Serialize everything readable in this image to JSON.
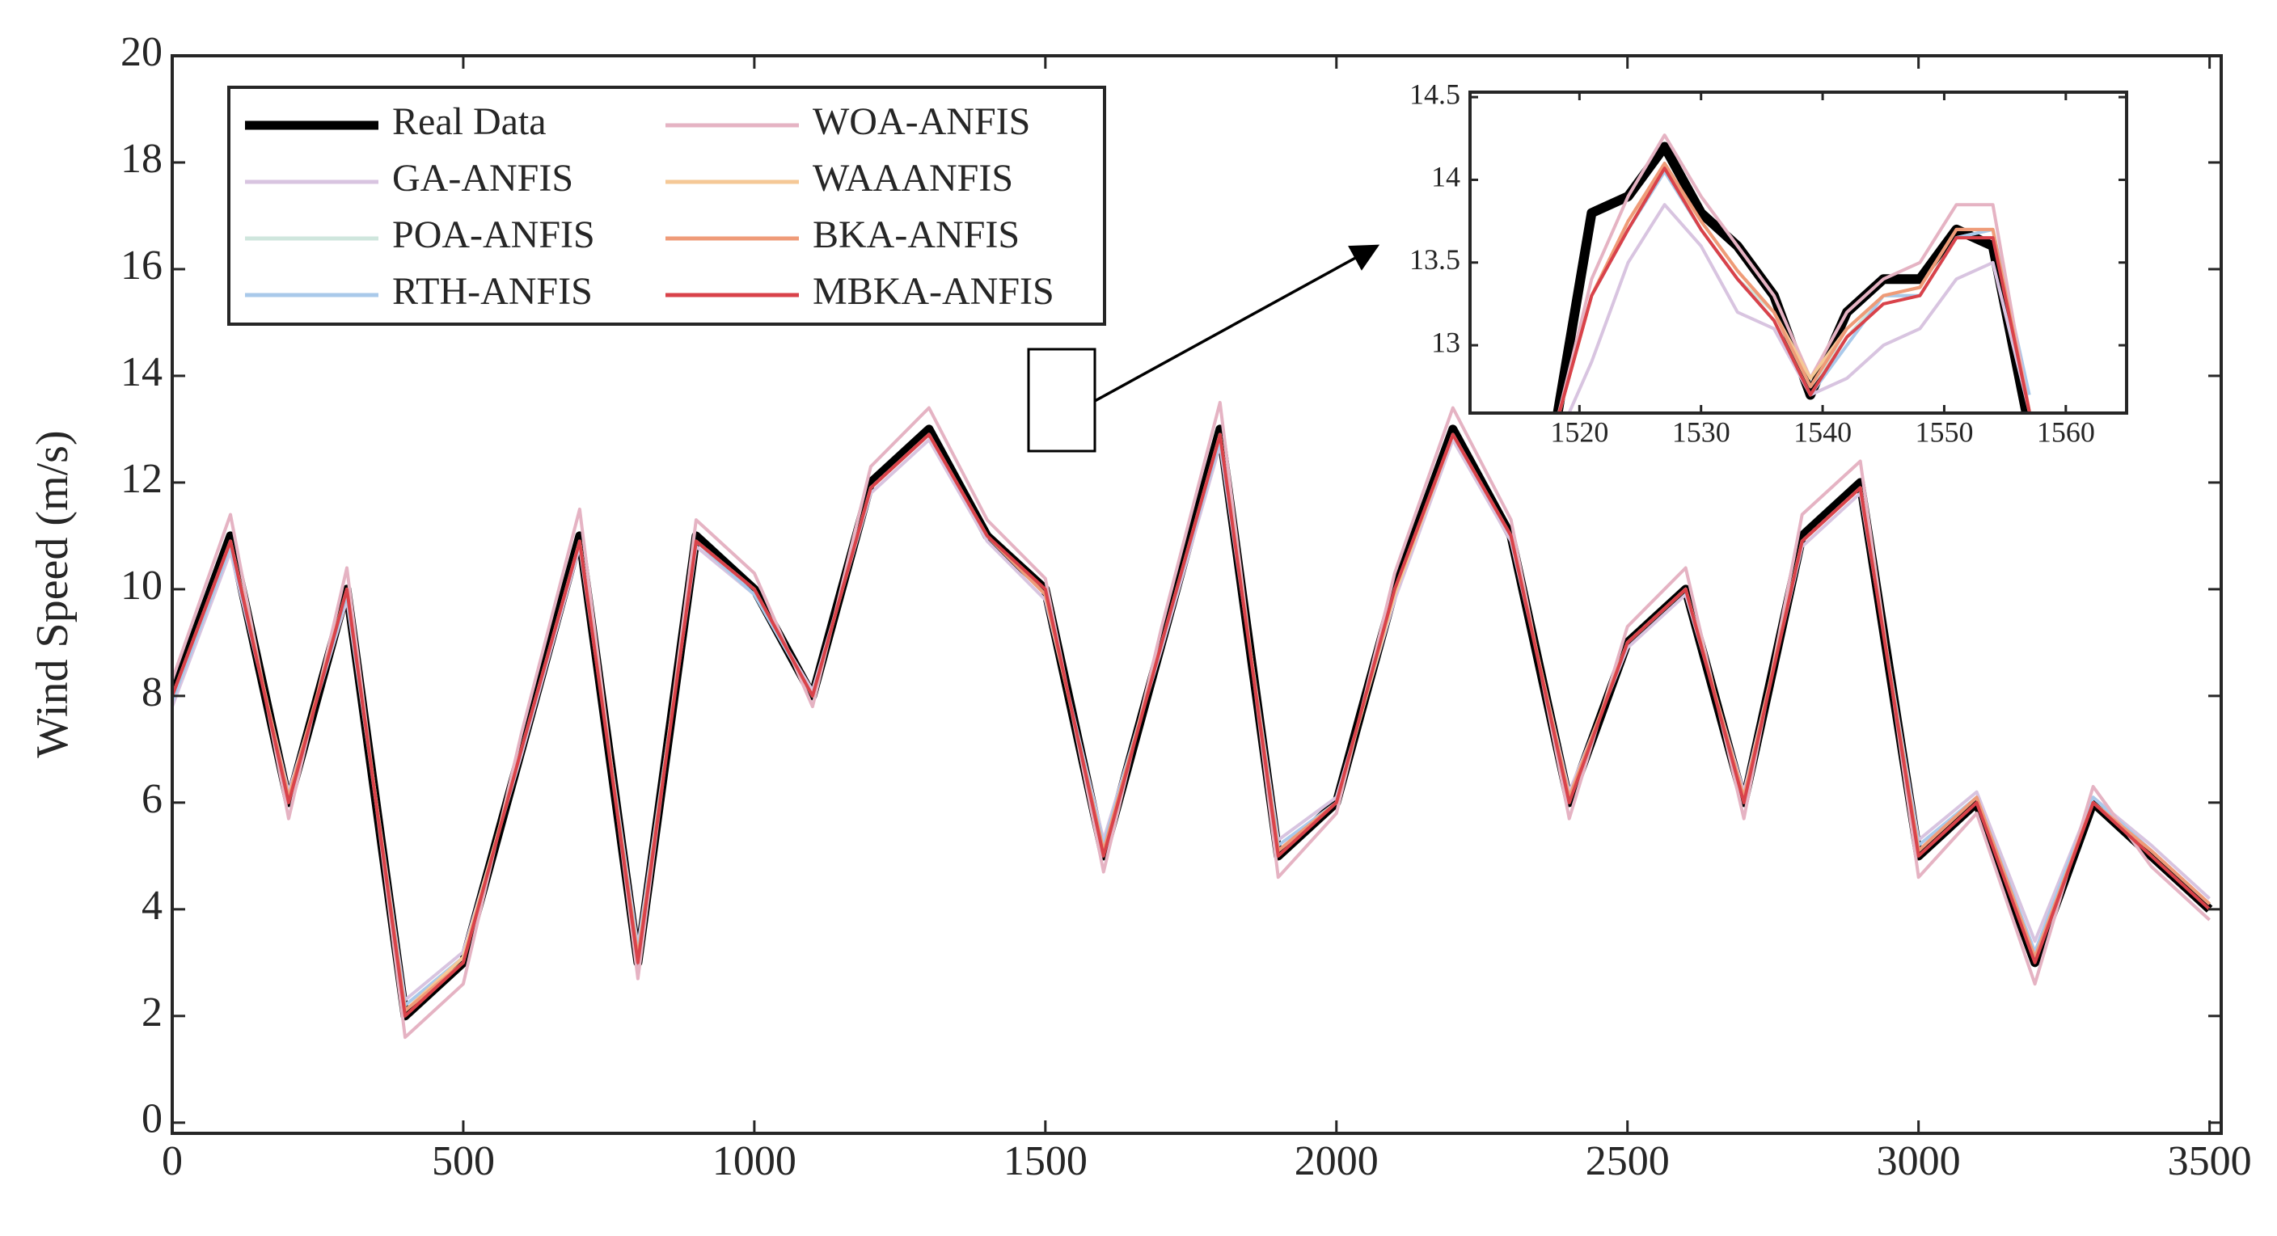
{
  "chart_data": [
    {
      "type": "line",
      "y_label": "Wind Speed (m/s)",
      "xlim": [
        0,
        3520
      ],
      "ylim": [
        -0.2,
        20
      ],
      "xticks": [
        0,
        500,
        1000,
        1500,
        2000,
        2500,
        3000,
        3500
      ],
      "yticks": [
        0,
        2,
        4,
        6,
        8,
        10,
        12,
        14,
        16,
        18,
        20
      ],
      "x": [
        0,
        100,
        200,
        300,
        400,
        500,
        600,
        700,
        800,
        900,
        1000,
        1100,
        1200,
        1300,
        1400,
        1500,
        1600,
        1700,
        1800,
        1900,
        2000,
        2100,
        2200,
        2300,
        2400,
        2500,
        2600,
        2700,
        2800,
        2900,
        3000,
        3100,
        3200,
        3300,
        3400,
        3500
      ],
      "series": [
        {
          "name": "Real Data",
          "color": "#000000",
          "values": [
            8,
            11,
            6,
            10,
            2,
            3,
            7,
            11,
            3,
            11,
            10,
            8,
            12,
            13,
            11,
            10,
            5,
            9,
            13,
            5,
            6,
            10,
            13,
            11,
            6,
            9,
            10,
            6,
            11,
            12,
            5,
            6,
            3,
            6,
            5,
            4
          ]
        },
        {
          "name": "GA-ANFIS",
          "color": "#d8c4e0",
          "values": [
            7.8,
            10.7,
            6.2,
            9.8,
            2.3,
            3.2,
            6.9,
            10.8,
            3.3,
            10.8,
            9.9,
            8.1,
            11.8,
            12.8,
            10.9,
            9.8,
            5.3,
            8.9,
            12.7,
            5.3,
            6.1,
            9.8,
            12.8,
            10.9,
            6.2,
            8.9,
            9.9,
            6.2,
            10.8,
            11.8,
            5.3,
            6.2,
            3.4,
            6.1,
            5.2,
            4.2
          ]
        },
        {
          "name": "POA-ANFIS",
          "color": "#cfe6dd",
          "values": [
            7.9,
            10.9,
            6.1,
            9.9,
            2.1,
            3.1,
            7,
            10.9,
            3.1,
            10.9,
            10,
            8,
            11.9,
            12.9,
            11,
            9.9,
            5.1,
            9,
            12.9,
            5.1,
            6,
            9.9,
            12.9,
            11,
            6.1,
            9,
            10,
            6.1,
            10.9,
            11.9,
            5.1,
            6.1,
            3.1,
            6,
            5.1,
            4.1
          ]
        },
        {
          "name": "RTH-ANFIS",
          "color": "#a9c9ea",
          "values": [
            7.9,
            10.8,
            6.1,
            9.9,
            2.2,
            3.1,
            7,
            10.9,
            3.2,
            10.9,
            9.9,
            8,
            11.9,
            12.9,
            11,
            9.9,
            5.2,
            9,
            12.8,
            5.2,
            6,
            9.9,
            12.9,
            11,
            6.1,
            9,
            10,
            6.1,
            10.9,
            11.9,
            5.2,
            6.1,
            3.2,
            6.1,
            5.1,
            4.1
          ]
        },
        {
          "name": "WOA-ANFIS",
          "color": "#e5b3c3",
          "values": [
            8.3,
            11.4,
            5.7,
            10.4,
            1.6,
            2.6,
            7.3,
            11.5,
            2.7,
            11.3,
            10.3,
            7.8,
            12.3,
            13.4,
            11.3,
            10.2,
            4.7,
            9.3,
            13.5,
            4.6,
            5.8,
            10.3,
            13.4,
            11.3,
            5.7,
            9.3,
            10.4,
            5.7,
            11.4,
            12.4,
            4.6,
            5.8,
            2.6,
            6.3,
            4.8,
            3.8
          ]
        },
        {
          "name": "WAAANFIS",
          "color": "#f5c896",
          "values": [
            8,
            10.9,
            6.1,
            10,
            2.1,
            3.1,
            7,
            10.9,
            3.1,
            10.9,
            10,
            8,
            11.9,
            12.9,
            11,
            9.9,
            5.1,
            9,
            12.9,
            5.1,
            6,
            9.9,
            12.9,
            11,
            6.1,
            9,
            10,
            6.1,
            10.9,
            11.9,
            5.1,
            6.1,
            3.1,
            6,
            5.1,
            4.1
          ]
        },
        {
          "name": "BKA-ANFIS",
          "color": "#ef9b78",
          "values": [
            8,
            10.9,
            6.1,
            10,
            2.1,
            3,
            7,
            10.9,
            3.1,
            10.9,
            10,
            8,
            11.9,
            12.9,
            11,
            9.9,
            5.1,
            9,
            12.9,
            5.1,
            6,
            10,
            12.9,
            11,
            6.1,
            9,
            10,
            6.1,
            10.9,
            11.9,
            5.1,
            6.1,
            3.1,
            6,
            5.1,
            4.1
          ]
        },
        {
          "name": "MBKA-ANFIS",
          "color": "#d9424a",
          "values": [
            8,
            10.9,
            6,
            10,
            2,
            3,
            7,
            10.9,
            3,
            10.9,
            10,
            8,
            11.9,
            12.9,
            11,
            10,
            5,
            9,
            12.9,
            5,
            6,
            10,
            12.9,
            11,
            6,
            9,
            10,
            6,
            10.9,
            11.9,
            5,
            6,
            3,
            6,
            5,
            4
          ]
        }
      ]
    },
    {
      "type": "line",
      "xlim": [
        1511,
        1565
      ],
      "ylim": [
        12.59,
        14.53
      ],
      "xticks": [
        1520,
        1530,
        1540,
        1550,
        1560
      ],
      "yticks": [
        13,
        13.5,
        14,
        14.5
      ],
      "x": [
        1518,
        1521,
        1524,
        1527,
        1530,
        1533,
        1536,
        1539,
        1542,
        1545,
        1548,
        1551,
        1554,
        1557
      ],
      "series": [
        {
          "color": "#000000",
          "values": [
            12.5,
            13.8,
            13.9,
            14.2,
            13.8,
            13.6,
            13.3,
            12.7,
            13.2,
            13.4,
            13.4,
            13.7,
            13.6,
            12.5
          ]
        },
        {
          "color": "#d8c4e0",
          "values": [
            12.4,
            12.9,
            13.5,
            13.85,
            13.6,
            13.2,
            13.1,
            12.7,
            12.8,
            13.0,
            13.1,
            13.4,
            13.5,
            12.6
          ]
        },
        {
          "color": "#cfe6dd",
          "values": [
            12.5,
            13.3,
            13.7,
            14.05,
            13.7,
            13.4,
            13.2,
            12.75,
            13.05,
            13.3,
            13.3,
            13.65,
            13.7,
            12.6
          ]
        },
        {
          "color": "#a9c9ea",
          "values": [
            12.5,
            13.3,
            13.7,
            14.05,
            13.7,
            13.4,
            13.15,
            12.7,
            13.0,
            13.3,
            13.3,
            13.65,
            13.7,
            12.7
          ]
        },
        {
          "color": "#e5b3c3",
          "values": [
            12.5,
            13.4,
            13.9,
            14.27,
            13.9,
            13.6,
            13.3,
            12.8,
            13.2,
            13.4,
            13.5,
            13.85,
            13.85,
            12.6
          ]
        },
        {
          "color": "#f5c896",
          "values": [
            12.5,
            13.3,
            13.75,
            14.08,
            13.75,
            13.45,
            13.2,
            12.8,
            13.1,
            13.3,
            13.35,
            13.7,
            13.7,
            12.6
          ]
        },
        {
          "color": "#ef9b78",
          "values": [
            12.5,
            13.3,
            13.75,
            14.1,
            13.75,
            13.45,
            13.2,
            12.75,
            13.1,
            13.3,
            13.35,
            13.7,
            13.7,
            12.6
          ]
        },
        {
          "color": "#d9424a",
          "values": [
            12.5,
            13.3,
            13.7,
            14.07,
            13.7,
            13.4,
            13.15,
            12.7,
            13.05,
            13.25,
            13.3,
            13.65,
            13.65,
            12.6
          ]
        }
      ]
    }
  ]
}
